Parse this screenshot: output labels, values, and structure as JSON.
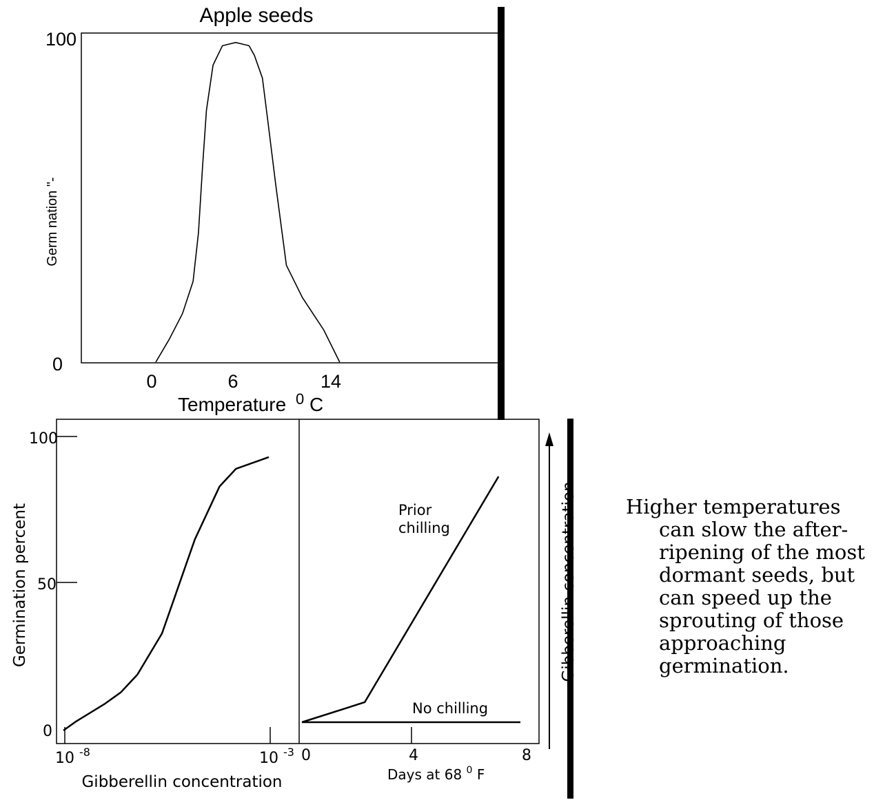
{
  "colors": {
    "ink": "#000000",
    "background": "#ffffff"
  },
  "caption": {
    "lines": [
      "Higher temperatures",
      "can slow the after-",
      "ripening of the most",
      "dormant  seeds, but",
      "can speed up the",
      "sprouting of those",
      "approaching",
      "germination."
    ]
  },
  "chart_data": [
    {
      "type": "line",
      "title": "Apple seeds",
      "xlabel": "Temperature",
      "xlabel_unit_sup": "0",
      "xlabel_unit": "C",
      "ylabel": "Germ nation \"-",
      "x_ticks": [
        "0",
        "6",
        "14"
      ],
      "y_ticks": [
        "100",
        "0"
      ],
      "grid": false,
      "series": [
        {
          "x": [
            0,
            1,
            2,
            2.8,
            3.2,
            3.5,
            3.8,
            4.3,
            5,
            6,
            7,
            7.4,
            8,
            8.4,
            9,
            9.8,
            11,
            12.6,
            13.8
          ],
          "y": [
            0,
            7,
            15,
            25,
            40,
            60,
            78,
            92,
            98,
            99,
            98,
            95,
            88,
            75,
            55,
            30,
            20,
            10,
            0
          ]
        }
      ]
    },
    {
      "type": "line",
      "xlabel": "Gibberellin concentration",
      "ylabel": "Germination percent",
      "x_tick_left": {
        "base": "10",
        "exp": "-8"
      },
      "x_tick_right": {
        "base": "10",
        "exp": "-3"
      },
      "y_ticks": [
        "100",
        "50",
        "0"
      ],
      "xlim": [
        -8,
        -3
      ],
      "ylim": [
        0,
        100
      ],
      "grid": false,
      "series": [
        {
          "x": [
            -8,
            -7.7,
            -7,
            -6.6,
            -6.2,
            -5.6,
            -5.3,
            -5.1,
            -4.8,
            -4.2,
            -3.8,
            -3.0
          ],
          "y": [
            0,
            3,
            9,
            13,
            19,
            33,
            45,
            53,
            65,
            83,
            89,
            93
          ]
        }
      ]
    },
    {
      "type": "line",
      "xlabel": "Days at 68",
      "xlabel_unit_sup": "0",
      "xlabel_unit": " F",
      "x_ticks": [
        "0",
        "4",
        "8"
      ],
      "xlim": [
        0,
        8
      ],
      "ylim": [
        0,
        100
      ],
      "grid": false,
      "side_label": "Gibberellin concentration",
      "series": [
        {
          "name": "Prior chilling",
          "x": [
            0,
            2.3,
            7.2
          ],
          "y": [
            0,
            7,
            86
          ]
        },
        {
          "name": "No chilling",
          "x": [
            0,
            8
          ],
          "y": [
            0,
            0
          ]
        }
      ]
    }
  ]
}
